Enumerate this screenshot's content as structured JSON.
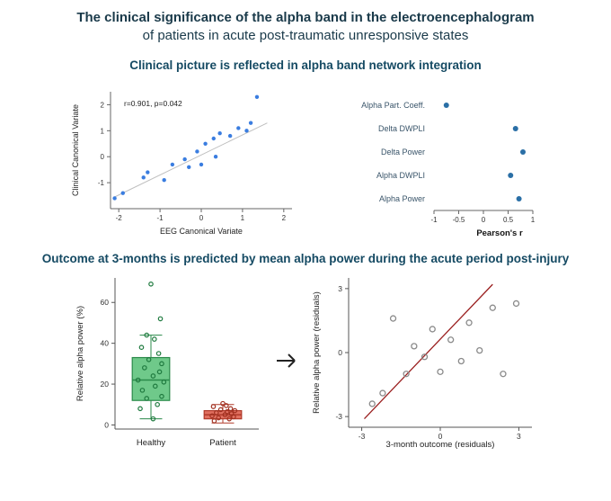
{
  "title": {
    "line1": "The clinical significance of the alpha band in the electroencephalogram",
    "line2": "of patients in acute post-traumatic unresponsive states"
  },
  "section1_heading": "Clinical picture is reflected in alpha band network integration",
  "section2_heading": "Outcome at 3-months is predicted by mean alpha power during the acute period post-injury",
  "scatter1": {
    "type": "scatter",
    "xlabel": "EEG Canonical Variate",
    "ylabel": "Clinical Canonical Variate",
    "annotation": "r=0.901, p=0.042",
    "xlim": [
      -2.2,
      2.2
    ],
    "ylim": [
      -2.0,
      2.5
    ],
    "xticks": [
      -2,
      -1,
      0,
      1,
      2
    ],
    "yticks": [
      -1,
      0,
      1,
      2
    ],
    "point_color": "#3a7de0",
    "point_radius": 2.2,
    "axis_color": "#666666",
    "tick_fontsize": 8,
    "label_fontsize": 9,
    "annotation_fontsize": 8.5,
    "fit_line_color": "#bfbfbf",
    "fit_line_width": 1,
    "points": [
      [
        -2.1,
        -1.6
      ],
      [
        -1.9,
        -1.4
      ],
      [
        -1.4,
        -0.8
      ],
      [
        -1.3,
        -0.6
      ],
      [
        -0.9,
        -0.9
      ],
      [
        -0.7,
        -0.3
      ],
      [
        -0.4,
        -0.1
      ],
      [
        -0.3,
        -0.4
      ],
      [
        -0.1,
        0.2
      ],
      [
        0.0,
        -0.3
      ],
      [
        0.1,
        0.5
      ],
      [
        0.35,
        0.0
      ],
      [
        0.3,
        0.7
      ],
      [
        0.45,
        0.9
      ],
      [
        0.7,
        0.8
      ],
      [
        0.9,
        1.1
      ],
      [
        1.1,
        1.0
      ],
      [
        1.2,
        1.3
      ],
      [
        1.35,
        2.3
      ]
    ],
    "fit": [
      [
        -2.1,
        -1.55
      ],
      [
        1.6,
        1.3
      ]
    ]
  },
  "dotplot": {
    "type": "dot",
    "title": "",
    "xlabel": "Pearson's r",
    "xlim": [
      -1,
      1
    ],
    "xticks": [
      -1,
      -0.5,
      0,
      0.5,
      1
    ],
    "point_color": "#2a6fa6",
    "point_radius": 3,
    "label_color": "#3a556a",
    "label_fontsize": 9,
    "xlabel_fontsize": 9.5,
    "xlabel_weight": "bold",
    "tick_fontsize": 8,
    "axis_color": "#666666",
    "items": [
      {
        "label": "Alpha Part. Coeff.",
        "value": -0.75
      },
      {
        "label": "Delta DWPLI",
        "value": 0.65
      },
      {
        "label": "Delta Power",
        "value": 0.8
      },
      {
        "label": "Alpha DWPLI",
        "value": 0.55
      },
      {
        "label": "Alpha Power",
        "value": 0.72
      }
    ]
  },
  "boxplot": {
    "type": "boxplot",
    "ylabel": "Relative alpha power (%)",
    "ylim": [
      -2,
      72
    ],
    "yticks": [
      0,
      20,
      40,
      60
    ],
    "categories": [
      "Healthy",
      "Patient"
    ],
    "label_fontsize": 9.5,
    "tick_fontsize": 8.5,
    "axis_color": "#555555",
    "boxes": [
      {
        "fill": "#6fc98a",
        "stroke": "#2a8a4a",
        "q1": 12,
        "median": 22,
        "q3": 33,
        "whisker_low": 3,
        "whisker_high": 44
      },
      {
        "fill": "#e07060",
        "stroke": "#b03a2a",
        "q1": 3,
        "median": 5,
        "q3": 7,
        "whisker_low": 1,
        "whisker_high": 10
      }
    ],
    "jitter_colors": [
      "#1f7a3f",
      "#a03020"
    ],
    "jitter_radius": 2.2,
    "jitter": [
      [
        [
          -0.25,
          8
        ],
        [
          0.15,
          10
        ],
        [
          -0.1,
          13
        ],
        [
          0.25,
          14
        ],
        [
          -0.2,
          17
        ],
        [
          0.1,
          19
        ],
        [
          0.3,
          21
        ],
        [
          -0.3,
          22
        ],
        [
          0.05,
          24
        ],
        [
          0.2,
          26
        ],
        [
          -0.15,
          28
        ],
        [
          0.25,
          30
        ],
        [
          -0.05,
          32
        ],
        [
          0.18,
          35
        ],
        [
          -0.22,
          38
        ],
        [
          0.08,
          42
        ],
        [
          -0.1,
          44
        ],
        [
          0.05,
          3
        ],
        [
          0.22,
          52
        ],
        [
          0.0,
          69
        ]
      ],
      [
        [
          -0.2,
          2
        ],
        [
          0.15,
          3
        ],
        [
          -0.1,
          3.5
        ],
        [
          0.25,
          4
        ],
        [
          -0.25,
          4.5
        ],
        [
          0.05,
          5
        ],
        [
          0.2,
          5.5
        ],
        [
          -0.15,
          6
        ],
        [
          0.1,
          6.5
        ],
        [
          0.28,
          7
        ],
        [
          -0.05,
          7.5
        ],
        [
          0.18,
          8
        ],
        [
          -0.22,
          9
        ],
        [
          0.08,
          9.5
        ],
        [
          0.0,
          10.5
        ]
      ]
    ]
  },
  "scatter2": {
    "type": "scatter",
    "xlabel": "3-month outcome (residuals)",
    "ylabel": "Relative alpha power (residuals)",
    "xlim": [
      -3.5,
      3.5
    ],
    "ylim": [
      -3.5,
      3.5
    ],
    "xticks": [
      -3,
      0,
      3
    ],
    "yticks": [
      -3,
      0,
      3
    ],
    "point_color": "#8a8a8a",
    "point_radius": 3,
    "axis_color": "#555555",
    "tick_fontsize": 8.5,
    "label_fontsize": 9.5,
    "fit_line_color": "#9a1f1f",
    "fit_line_width": 1.3,
    "points": [
      [
        -2.6,
        -2.4
      ],
      [
        -2.2,
        -1.9
      ],
      [
        -1.8,
        1.6
      ],
      [
        -1.3,
        -1.0
      ],
      [
        -1.0,
        0.3
      ],
      [
        -0.6,
        -0.2
      ],
      [
        -0.3,
        1.1
      ],
      [
        0.0,
        -0.9
      ],
      [
        0.4,
        0.6
      ],
      [
        0.8,
        -0.4
      ],
      [
        1.1,
        1.4
      ],
      [
        1.5,
        0.1
      ],
      [
        2.0,
        2.1
      ],
      [
        2.4,
        -1.0
      ],
      [
        2.9,
        2.3
      ]
    ],
    "fit": [
      [
        -2.9,
        -3.1
      ],
      [
        2.0,
        3.2
      ]
    ]
  }
}
